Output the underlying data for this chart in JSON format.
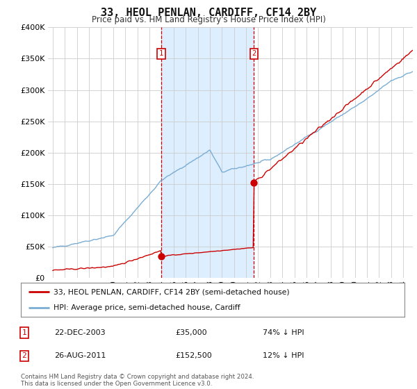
{
  "title": "33, HEOL PENLAN, CARDIFF, CF14 2BY",
  "subtitle": "Price paid vs. HM Land Registry's House Price Index (HPI)",
  "legend_entry1": "33, HEOL PENLAN, CARDIFF, CF14 2BY (semi-detached house)",
  "legend_entry2": "HPI: Average price, semi-detached house, Cardiff",
  "transaction1_date": "22-DEC-2003",
  "transaction1_price": "£35,000",
  "transaction1_hpi": "74% ↓ HPI",
  "transaction1_year": 2003.97,
  "transaction1_value": 35000,
  "transaction2_date": "26-AUG-2011",
  "transaction2_price": "£152,500",
  "transaction2_hpi": "12% ↓ HPI",
  "transaction2_year": 2011.65,
  "transaction2_value": 152500,
  "footer": "Contains HM Land Registry data © Crown copyright and database right 2024.\nThis data is licensed under the Open Government Licence v3.0.",
  "red_color": "#cc0000",
  "blue_color": "#7aadd4",
  "shade_color": "#ddeeff",
  "dashed_color": "#cc0000",
  "background_color": "#ffffff",
  "grid_color": "#cccccc",
  "ylim": [
    0,
    400000
  ],
  "yticks": [
    0,
    50000,
    100000,
    150000,
    200000,
    250000,
    300000,
    350000,
    400000
  ],
  "xlim_min": 1994.6,
  "xlim_max": 2024.8
}
